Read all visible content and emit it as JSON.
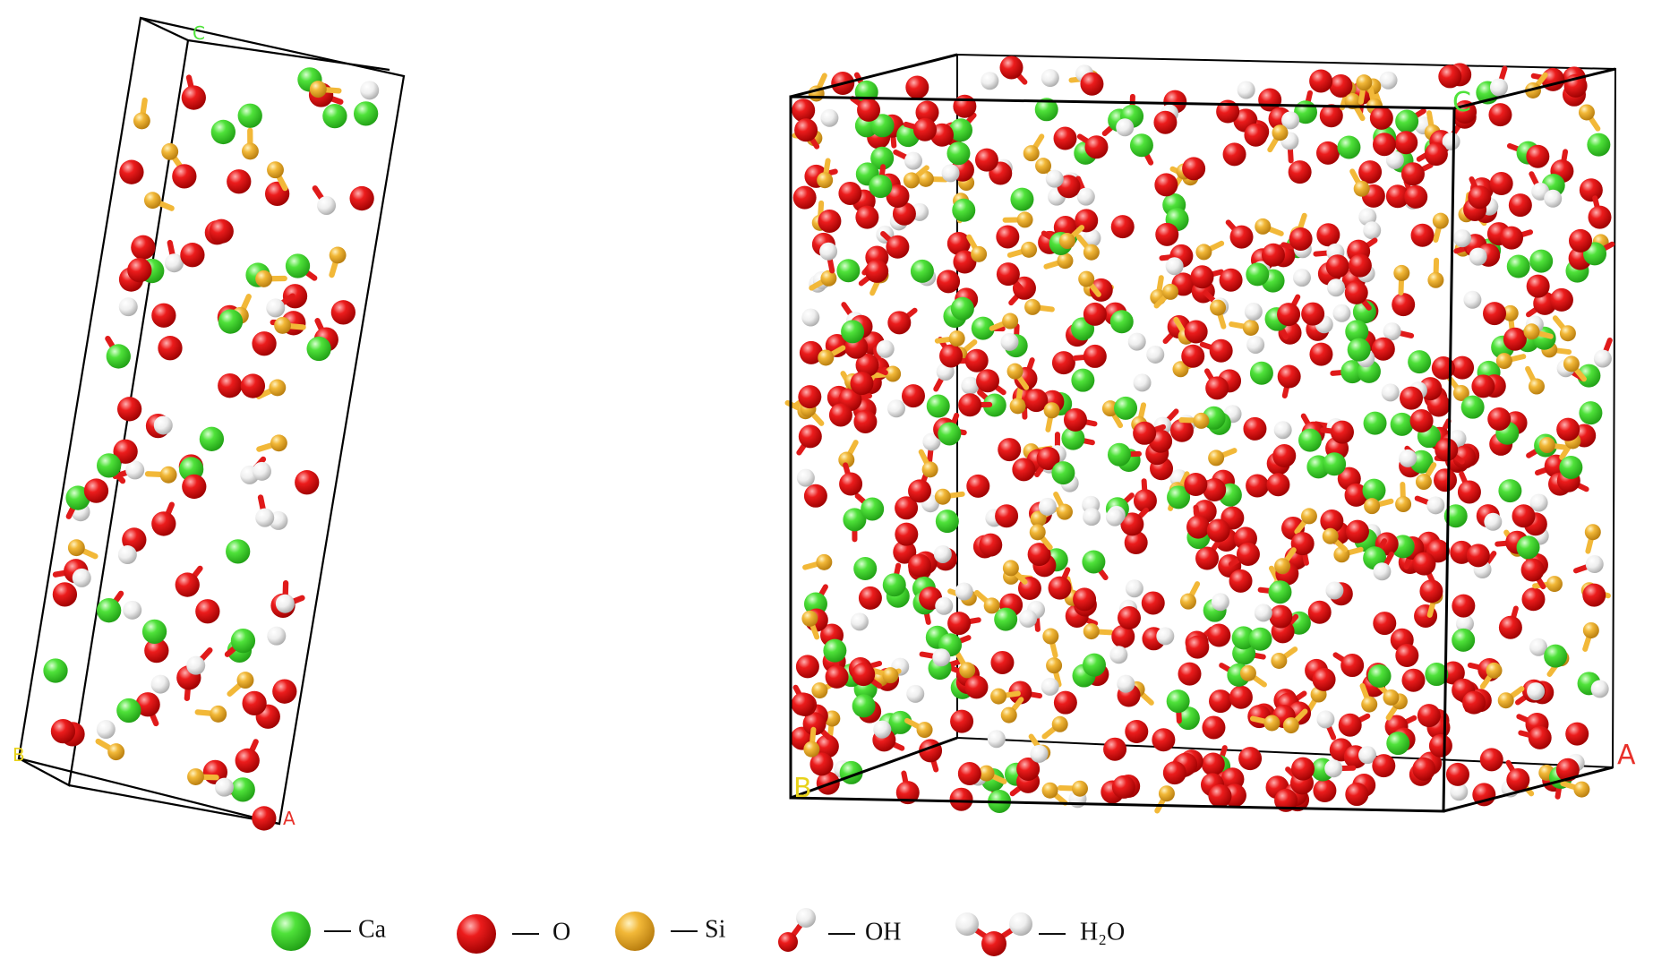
{
  "cells": [
    {
      "labels": {
        "c": "C",
        "b": "B",
        "a": "A"
      }
    },
    {
      "labels": {
        "c": "C",
        "b": "B",
        "a": "A"
      }
    }
  ],
  "legend": [
    {
      "label": "Ca"
    },
    {
      "label": "O"
    },
    {
      "label": "Si"
    },
    {
      "label": "OH"
    },
    {
      "label": "H₂O"
    }
  ]
}
